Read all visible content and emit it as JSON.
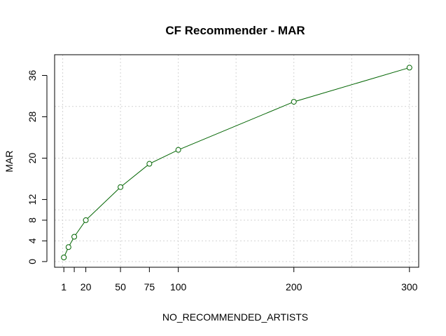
{
  "chart_data": {
    "type": "line",
    "title": "CF Recommender - MAR",
    "xlabel": "NO_RECOMMENDED_ARTISTS",
    "ylabel": "MAR",
    "x": [
      1,
      5,
      10,
      20,
      50,
      75,
      100,
      200,
      300
    ],
    "series": [
      {
        "values": [
          0.8,
          2.8,
          4.8,
          8.0,
          14.4,
          18.9,
          21.6,
          30.9,
          37.5
        ],
        "color": "#006400",
        "marker": "open-circle"
      }
    ],
    "xlim": [
      -7.0,
      308.0
    ],
    "ylim": [
      -1.1,
      40.0
    ],
    "x_ticks": [
      1,
      10,
      20,
      50,
      75,
      100,
      200,
      300
    ],
    "x_tick_labels": [
      "1",
      "",
      "20",
      "50",
      "75",
      "100",
      "200",
      "300"
    ],
    "y_ticks": [
      0,
      4,
      8,
      12,
      20,
      28,
      36
    ],
    "y_tick_labels": [
      "0",
      "4",
      "8",
      "12",
      "20",
      "28",
      "36"
    ],
    "x_grid": [
      0,
      50,
      100,
      150,
      200,
      250,
      300
    ],
    "y_grid": [
      0,
      4,
      8,
      10,
      20,
      30,
      40
    ],
    "grid": true,
    "grid_color": "#d3d3d3",
    "background": "#ffffff"
  }
}
